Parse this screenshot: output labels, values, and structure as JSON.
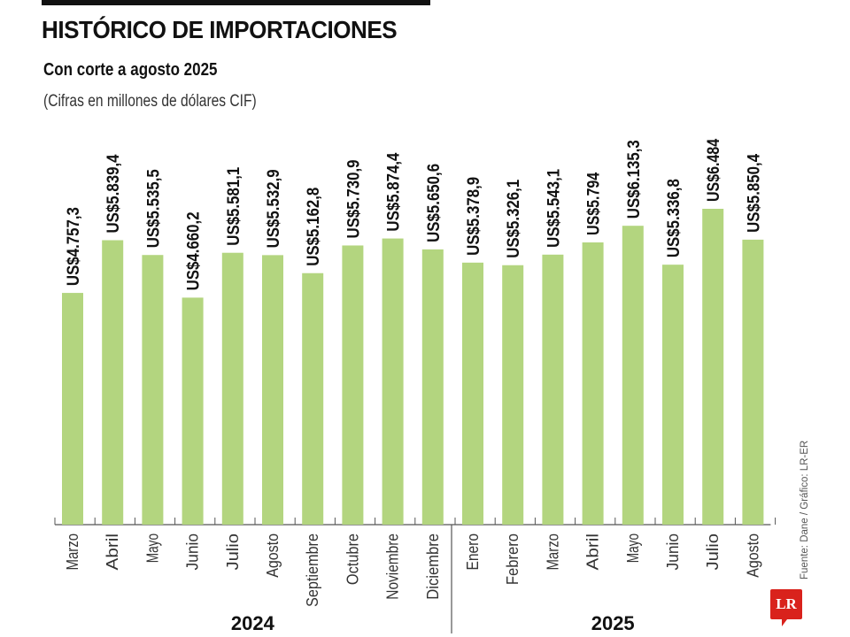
{
  "header": {
    "title": "HISTÓRICO DE IMPORTACIONES",
    "subtitle": "Con corte a agosto 2025",
    "note": "(Cifras en millones de dólares CIF)"
  },
  "footer": {
    "source": "Fuente: Dane / Gráfico: LR-ER",
    "logo_text": "LR"
  },
  "colors": {
    "bar": "#b3d57f",
    "axis": "#555555",
    "logo": "#d9221c"
  },
  "chart_data": {
    "type": "bar",
    "title": "HISTÓRICO DE IMPORTACIONES",
    "subtitle": "Con corte a agosto 2025",
    "ylabel": "(Cifras en millones de dólares CIF)",
    "xlabel": "",
    "ylim": [
      0,
      6500
    ],
    "grid": false,
    "categories": [
      "Marzo",
      "Abril",
      "Mayo",
      "Junio",
      "Julio",
      "Agosto",
      "Septiembre",
      "Octubre",
      "Noviembre",
      "Diciembre",
      "Enero",
      "Febrero",
      "Marzo",
      "Abril",
      "Mayo",
      "Junio",
      "Julio",
      "Agosto"
    ],
    "values": [
      4757.3,
      5839.4,
      5535.5,
      4660.2,
      5581.1,
      5532.9,
      5162.8,
      5730.9,
      5874.4,
      5650.6,
      5378.9,
      5326.1,
      5543.1,
      5794,
      6135.3,
      5336.8,
      6484,
      5850.4
    ],
    "labels": [
      "US$4.757,3",
      "US$5.839,4",
      "US$5.535,5",
      "US$4.660,2",
      "US$5.581,1",
      "US$5.532,9",
      "US$5.162,8",
      "US$5.730,9",
      "US$5.874,4",
      "US$5.650,6",
      "US$5.378,9",
      "US$5.326,1",
      "US$5.543,1",
      "US$5.794",
      "US$6.135,3",
      "US$5.336,8",
      "US$6.484",
      "US$5.850,4"
    ],
    "groups": [
      {
        "label": "2024",
        "count": 10
      },
      {
        "label": "2025",
        "count": 8
      }
    ]
  }
}
